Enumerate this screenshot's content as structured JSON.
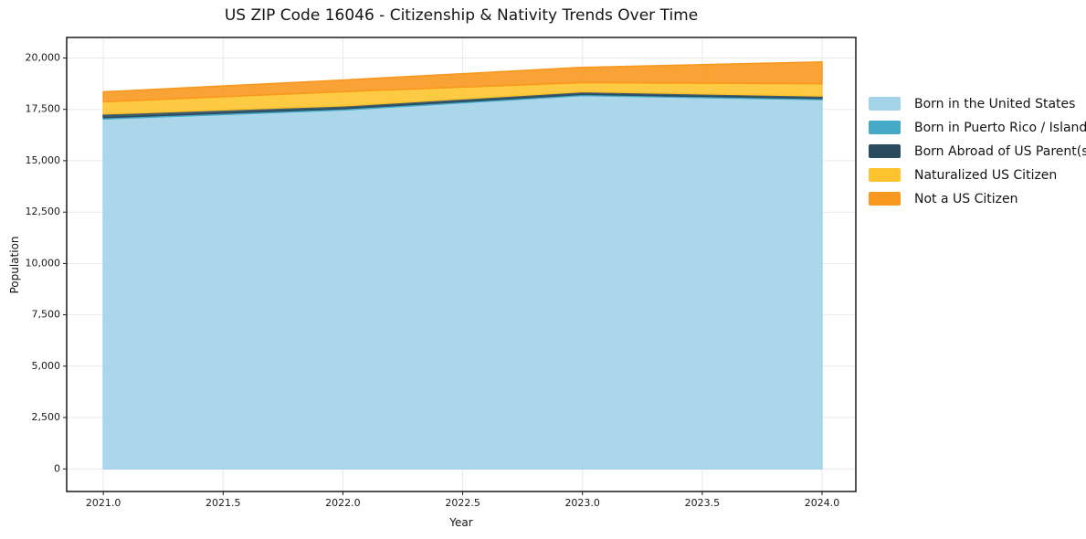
{
  "title": "US ZIP Code 16046 - Citizenship & Nativity Trends Over Time",
  "chart_data": {
    "type": "area",
    "stacked": true,
    "title": "US ZIP Code 16046 - Citizenship & Nativity Trends Over Time",
    "xlabel": "Year",
    "ylabel": "Population",
    "x": [
      2021,
      2022,
      2023,
      2024
    ],
    "series": [
      {
        "name": "Born in the United States",
        "color": "#a3d3e8",
        "values": [
          17030,
          17470,
          18170,
          17970
        ]
      },
      {
        "name": "Born in Puerto Rico / Islands",
        "color": "#45a9c7",
        "values": [
          65,
          60,
          60,
          60
        ]
      },
      {
        "name": "Born Abroad of US Parent(s)",
        "color": "#2b4b5e",
        "values": [
          180,
          140,
          130,
          120
        ]
      },
      {
        "name": "Naturalized US Citizen",
        "color": "#fdc42f",
        "values": [
          590,
          690,
          445,
          595
        ]
      },
      {
        "name": "Not a US Citizen",
        "color": "#f8981f",
        "values": [
          490,
          570,
          740,
          1065
        ]
      }
    ],
    "stack_totals": [
      18355,
      18930,
      19545,
      19810
    ],
    "xticks": {
      "values": [
        2021.0,
        2021.5,
        2022.0,
        2022.5,
        2023.0,
        2023.5,
        2024.0
      ],
      "labels": [
        "2021.0",
        "2021.5",
        "2022.0",
        "2022.5",
        "2023.0",
        "2023.5",
        "2024.0"
      ]
    },
    "yticks": {
      "values": [
        0,
        2500,
        5000,
        7500,
        10000,
        12500,
        15000,
        17500,
        20000
      ],
      "labels": [
        "0",
        "2,500",
        "5,000",
        "7,500",
        "10,000",
        "12,500",
        "15,000",
        "17,500",
        "20,000"
      ]
    },
    "xlim": [
      2020.847,
      2024.141
    ],
    "ylim": [
      -1100,
      21000
    ],
    "grid": true,
    "legend_position": "right-outside"
  },
  "style": {
    "grid_color": "#e9e9e9",
    "spine_color": "#1a1a1a",
    "tick_color": "#1a1a1a",
    "fill_opacity": 0.9
  }
}
